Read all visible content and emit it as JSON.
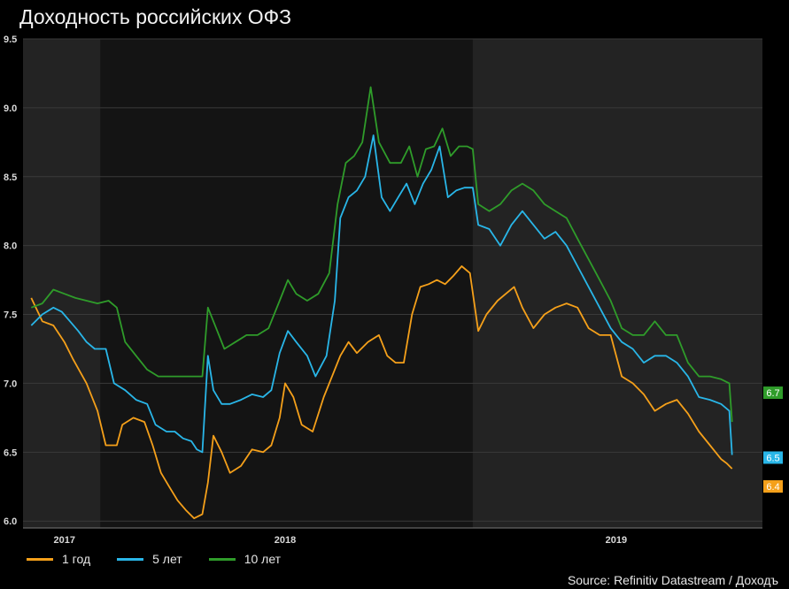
{
  "chart_data": {
    "type": "line",
    "title": "Доходность российских ОФЗ",
    "source": "Source: Refinitiv Datastream / Доходъ",
    "ylim": [
      5.95,
      9.5
    ],
    "xlim": [
      2016.97,
      2019.65
    ],
    "yticks": [
      "6.0",
      "6.5",
      "7.0",
      "7.5",
      "8.0",
      "8.5",
      "9.0",
      "9.5"
    ],
    "xticks": [
      {
        "label": "2017",
        "x": 2017.12
      },
      {
        "label": "2018",
        "x": 2017.92
      },
      {
        "label": "2019",
        "x": 2019.12
      }
    ],
    "shaded_periods": [
      [
        2016.97,
        2017.25
      ],
      [
        2018.6,
        2019.65
      ]
    ],
    "grid": true,
    "series": [
      {
        "name": "1 год",
        "color": "#f5a01a",
        "last_label": "6.4",
        "points": [
          [
            2017.0,
            7.62
          ],
          [
            2017.04,
            7.45
          ],
          [
            2017.08,
            7.42
          ],
          [
            2017.12,
            7.3
          ],
          [
            2017.15,
            7.18
          ],
          [
            2017.2,
            7.0
          ],
          [
            2017.24,
            6.8
          ],
          [
            2017.27,
            6.55
          ],
          [
            2017.31,
            6.55
          ],
          [
            2017.33,
            6.7
          ],
          [
            2017.37,
            6.75
          ],
          [
            2017.41,
            6.72
          ],
          [
            2017.44,
            6.55
          ],
          [
            2017.47,
            6.35
          ],
          [
            2017.5,
            6.25
          ],
          [
            2017.53,
            6.15
          ],
          [
            2017.56,
            6.08
          ],
          [
            2017.59,
            6.02
          ],
          [
            2017.62,
            6.05
          ],
          [
            2017.64,
            6.28
          ],
          [
            2017.66,
            6.62
          ],
          [
            2017.69,
            6.5
          ],
          [
            2017.72,
            6.35
          ],
          [
            2017.76,
            6.4
          ],
          [
            2017.8,
            6.52
          ],
          [
            2017.84,
            6.5
          ],
          [
            2017.87,
            6.55
          ],
          [
            2017.9,
            6.75
          ],
          [
            2017.92,
            7.0
          ],
          [
            2017.95,
            6.9
          ],
          [
            2017.98,
            6.7
          ],
          [
            2018.02,
            6.65
          ],
          [
            2018.06,
            6.9
          ],
          [
            2018.09,
            7.05
          ],
          [
            2018.12,
            7.2
          ],
          [
            2018.15,
            7.3
          ],
          [
            2018.18,
            7.22
          ],
          [
            2018.22,
            7.3
          ],
          [
            2018.26,
            7.35
          ],
          [
            2018.29,
            7.2
          ],
          [
            2018.32,
            7.15
          ],
          [
            2018.35,
            7.15
          ],
          [
            2018.38,
            7.5
          ],
          [
            2018.41,
            7.7
          ],
          [
            2018.44,
            7.72
          ],
          [
            2018.47,
            7.75
          ],
          [
            2018.5,
            7.72
          ],
          [
            2018.53,
            7.78
          ],
          [
            2018.56,
            7.85
          ],
          [
            2018.59,
            7.8
          ],
          [
            2018.62,
            7.38
          ],
          [
            2018.65,
            7.5
          ],
          [
            2018.69,
            7.6
          ],
          [
            2018.72,
            7.65
          ],
          [
            2018.75,
            7.7
          ],
          [
            2018.78,
            7.55
          ],
          [
            2018.82,
            7.4
          ],
          [
            2018.86,
            7.5
          ],
          [
            2018.9,
            7.55
          ],
          [
            2018.94,
            7.58
          ],
          [
            2018.98,
            7.55
          ],
          [
            2019.02,
            7.4
          ],
          [
            2019.06,
            7.35
          ],
          [
            2019.1,
            7.35
          ],
          [
            2019.14,
            7.05
          ],
          [
            2019.18,
            7.0
          ],
          [
            2019.22,
            6.92
          ],
          [
            2019.26,
            6.8
          ],
          [
            2019.3,
            6.85
          ],
          [
            2019.34,
            6.88
          ],
          [
            2019.38,
            6.78
          ],
          [
            2019.42,
            6.65
          ],
          [
            2019.46,
            6.55
          ],
          [
            2019.5,
            6.45
          ],
          [
            2019.52,
            6.42
          ],
          [
            2019.54,
            6.38
          ]
        ]
      },
      {
        "name": "5 лет",
        "color": "#29b6e8",
        "last_label": "6.5",
        "points": [
          [
            2017.0,
            7.42
          ],
          [
            2017.04,
            7.5
          ],
          [
            2017.08,
            7.55
          ],
          [
            2017.11,
            7.52
          ],
          [
            2017.14,
            7.45
          ],
          [
            2017.17,
            7.38
          ],
          [
            2017.2,
            7.3
          ],
          [
            2017.23,
            7.25
          ],
          [
            2017.27,
            7.25
          ],
          [
            2017.3,
            7.0
          ],
          [
            2017.34,
            6.95
          ],
          [
            2017.38,
            6.88
          ],
          [
            2017.42,
            6.85
          ],
          [
            2017.45,
            6.7
          ],
          [
            2017.49,
            6.65
          ],
          [
            2017.52,
            6.65
          ],
          [
            2017.55,
            6.6
          ],
          [
            2017.58,
            6.58
          ],
          [
            2017.6,
            6.52
          ],
          [
            2017.62,
            6.5
          ],
          [
            2017.64,
            7.2
          ],
          [
            2017.66,
            6.95
          ],
          [
            2017.69,
            6.85
          ],
          [
            2017.72,
            6.85
          ],
          [
            2017.76,
            6.88
          ],
          [
            2017.8,
            6.92
          ],
          [
            2017.84,
            6.9
          ],
          [
            2017.87,
            6.95
          ],
          [
            2017.9,
            7.22
          ],
          [
            2017.93,
            7.38
          ],
          [
            2017.96,
            7.3
          ],
          [
            2018.0,
            7.2
          ],
          [
            2018.03,
            7.05
          ],
          [
            2018.07,
            7.2
          ],
          [
            2018.1,
            7.6
          ],
          [
            2018.12,
            8.2
          ],
          [
            2018.15,
            8.35
          ],
          [
            2018.18,
            8.4
          ],
          [
            2018.21,
            8.5
          ],
          [
            2018.24,
            8.8
          ],
          [
            2018.27,
            8.35
          ],
          [
            2018.3,
            8.25
          ],
          [
            2018.33,
            8.35
          ],
          [
            2018.36,
            8.45
          ],
          [
            2018.39,
            8.3
          ],
          [
            2018.42,
            8.45
          ],
          [
            2018.45,
            8.55
          ],
          [
            2018.48,
            8.72
          ],
          [
            2018.51,
            8.35
          ],
          [
            2018.54,
            8.4
          ],
          [
            2018.57,
            8.42
          ],
          [
            2018.6,
            8.42
          ],
          [
            2018.62,
            8.15
          ],
          [
            2018.66,
            8.12
          ],
          [
            2018.7,
            8.0
          ],
          [
            2018.74,
            8.15
          ],
          [
            2018.78,
            8.25
          ],
          [
            2018.82,
            8.15
          ],
          [
            2018.86,
            8.05
          ],
          [
            2018.9,
            8.1
          ],
          [
            2018.94,
            8.0
          ],
          [
            2018.98,
            7.85
          ],
          [
            2019.02,
            7.7
          ],
          [
            2019.06,
            7.55
          ],
          [
            2019.1,
            7.4
          ],
          [
            2019.14,
            7.3
          ],
          [
            2019.18,
            7.25
          ],
          [
            2019.22,
            7.15
          ],
          [
            2019.26,
            7.2
          ],
          [
            2019.3,
            7.2
          ],
          [
            2019.34,
            7.15
          ],
          [
            2019.38,
            7.05
          ],
          [
            2019.42,
            6.9
          ],
          [
            2019.46,
            6.88
          ],
          [
            2019.5,
            6.85
          ],
          [
            2019.53,
            6.8
          ],
          [
            2019.54,
            6.48
          ]
        ]
      },
      {
        "name": "10 лет",
        "color": "#2f9c2a",
        "last_label": "6.7",
        "points": [
          [
            2017.0,
            7.55
          ],
          [
            2017.04,
            7.58
          ],
          [
            2017.08,
            7.68
          ],
          [
            2017.12,
            7.65
          ],
          [
            2017.16,
            7.62
          ],
          [
            2017.2,
            7.6
          ],
          [
            2017.24,
            7.58
          ],
          [
            2017.28,
            7.6
          ],
          [
            2017.31,
            7.55
          ],
          [
            2017.34,
            7.3
          ],
          [
            2017.38,
            7.2
          ],
          [
            2017.42,
            7.1
          ],
          [
            2017.46,
            7.05
          ],
          [
            2017.5,
            7.05
          ],
          [
            2017.54,
            7.05
          ],
          [
            2017.58,
            7.05
          ],
          [
            2017.62,
            7.05
          ],
          [
            2017.64,
            7.55
          ],
          [
            2017.67,
            7.4
          ],
          [
            2017.7,
            7.25
          ],
          [
            2017.74,
            7.3
          ],
          [
            2017.78,
            7.35
          ],
          [
            2017.82,
            7.35
          ],
          [
            2017.86,
            7.4
          ],
          [
            2017.9,
            7.6
          ],
          [
            2017.93,
            7.75
          ],
          [
            2017.96,
            7.65
          ],
          [
            2018.0,
            7.6
          ],
          [
            2018.04,
            7.65
          ],
          [
            2018.08,
            7.8
          ],
          [
            2018.11,
            8.3
          ],
          [
            2018.14,
            8.6
          ],
          [
            2018.17,
            8.65
          ],
          [
            2018.2,
            8.75
          ],
          [
            2018.23,
            9.15
          ],
          [
            2018.26,
            8.75
          ],
          [
            2018.3,
            8.6
          ],
          [
            2018.34,
            8.6
          ],
          [
            2018.37,
            8.72
          ],
          [
            2018.4,
            8.5
          ],
          [
            2018.43,
            8.7
          ],
          [
            2018.46,
            8.72
          ],
          [
            2018.49,
            8.85
          ],
          [
            2018.52,
            8.65
          ],
          [
            2018.55,
            8.72
          ],
          [
            2018.58,
            8.72
          ],
          [
            2018.6,
            8.7
          ],
          [
            2018.62,
            8.3
          ],
          [
            2018.66,
            8.25
          ],
          [
            2018.7,
            8.3
          ],
          [
            2018.74,
            8.4
          ],
          [
            2018.78,
            8.45
          ],
          [
            2018.82,
            8.4
          ],
          [
            2018.86,
            8.3
          ],
          [
            2018.9,
            8.25
          ],
          [
            2018.94,
            8.2
          ],
          [
            2018.98,
            8.05
          ],
          [
            2019.02,
            7.9
          ],
          [
            2019.06,
            7.75
          ],
          [
            2019.1,
            7.6
          ],
          [
            2019.14,
            7.4
          ],
          [
            2019.18,
            7.35
          ],
          [
            2019.22,
            7.35
          ],
          [
            2019.26,
            7.45
          ],
          [
            2019.3,
            7.35
          ],
          [
            2019.34,
            7.35
          ],
          [
            2019.38,
            7.15
          ],
          [
            2019.42,
            7.05
          ],
          [
            2019.46,
            7.05
          ],
          [
            2019.5,
            7.03
          ],
          [
            2019.53,
            7.0
          ],
          [
            2019.54,
            6.72
          ]
        ]
      }
    ]
  }
}
